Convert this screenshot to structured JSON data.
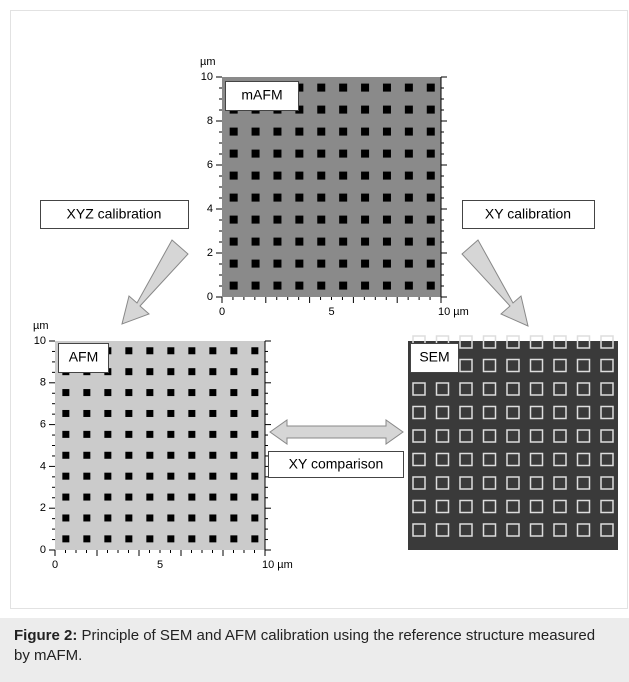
{
  "panels": {
    "mafm": {
      "label": "mAFM",
      "unit": "µm",
      "yticks": [
        "10",
        "8",
        "6",
        "4",
        "2",
        "0"
      ],
      "xticks": [
        "0",
        "5",
        "10 µm"
      ]
    },
    "afm": {
      "label": "AFM",
      "unit": "µm",
      "yticks": [
        "10",
        "8",
        "6",
        "4",
        "2",
        "0"
      ],
      "xticks": [
        "0",
        "5",
        "10 µm"
      ]
    },
    "sem": {
      "label": "SEM"
    }
  },
  "arrows": {
    "left": "XYZ calibration",
    "right": "XY calibration",
    "middle": "XY comparison"
  },
  "caption": {
    "label": "Figure 2:",
    "text": "Principle of SEM and AFM calibration using the reference structure measured by mAFM."
  }
}
